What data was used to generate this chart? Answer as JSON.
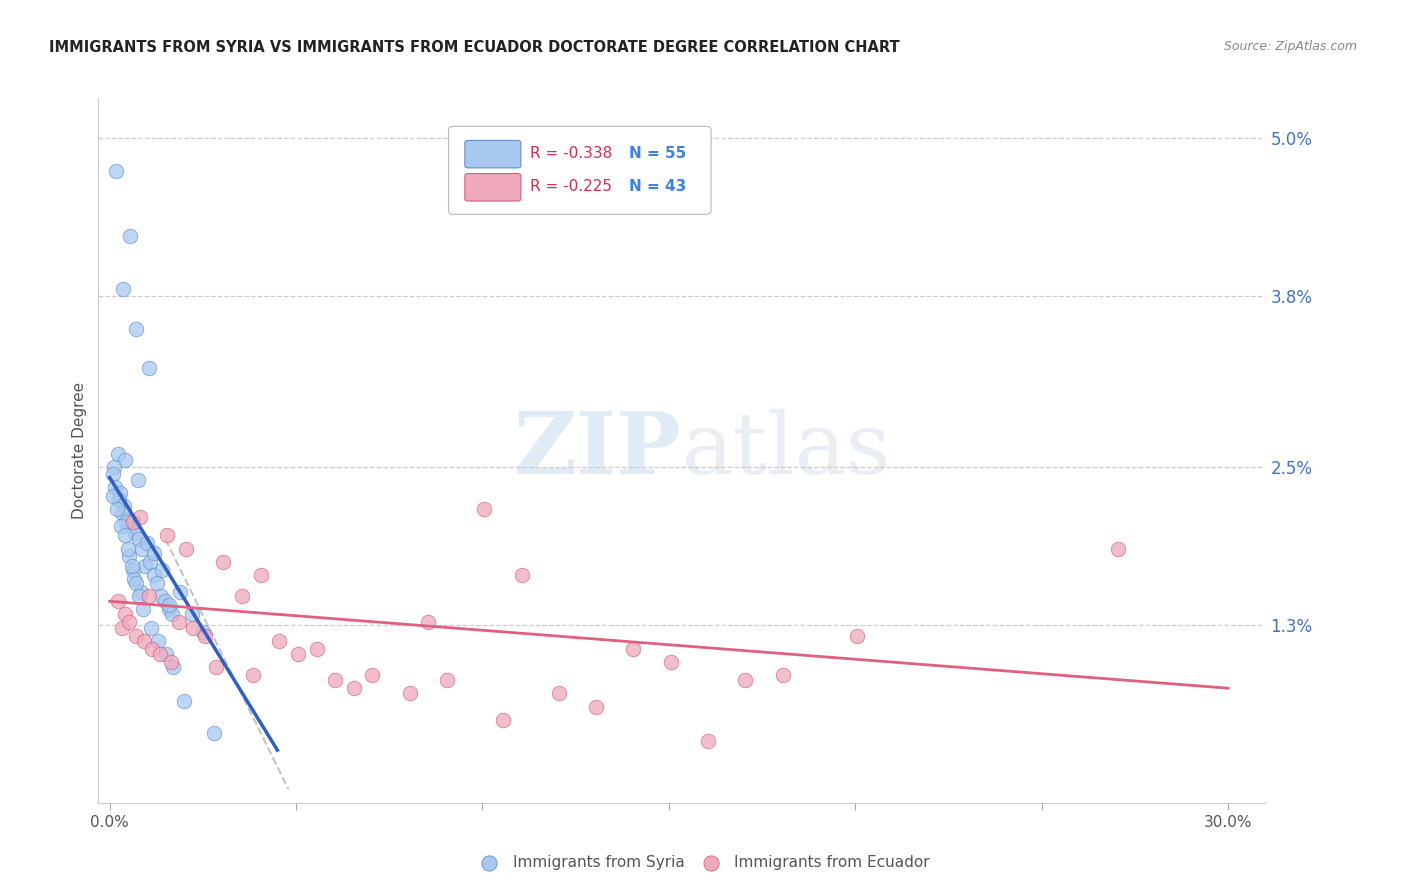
{
  "title": "IMMIGRANTS FROM SYRIA VS IMMIGRANTS FROM ECUADOR DOCTORATE DEGREE CORRELATION CHART",
  "source_text": "Source: ZipAtlas.com",
  "ylabel": "Doctorate Degree",
  "y_ticks_right": [
    1.3,
    2.5,
    3.8,
    5.0
  ],
  "y_tick_labels_right": [
    "1.3%",
    "2.5%",
    "3.8%",
    "5.0%"
  ],
  "y_min": -0.05,
  "y_max": 5.3,
  "x_min": -0.3,
  "x_max": 31.0,
  "legend_r_syria": "R = -0.338",
  "legend_n_syria": "N = 55",
  "legend_r_ecuador": "R = -0.225",
  "legend_n_ecuador": "N = 43",
  "legend_label_syria": "Immigrants from Syria",
  "legend_label_ecuador": "Immigrants from Ecuador",
  "color_syria": "#A8C8F0",
  "color_ecuador": "#F0A8BC",
  "color_syria_edge": "#6090C8",
  "color_ecuador_edge": "#D06080",
  "color_syria_line": "#3060C0",
  "color_ecuador_line": "#E06080",
  "color_r": "#CC3050",
  "color_n": "#4080E0",
  "grid_color": "#CCCCCC",
  "background_color": "#FFFFFF",
  "watermark_zip": "ZIP",
  "watermark_atlas": "atlas",
  "syria_x": [
    0.18,
    0.55,
    0.35,
    0.7,
    1.05,
    0.22,
    0.42,
    0.75,
    0.12,
    0.08,
    0.15,
    0.28,
    0.38,
    0.48,
    0.58,
    0.68,
    0.78,
    0.88,
    0.95,
    1.08,
    1.18,
    1.28,
    1.38,
    1.48,
    1.58,
    1.68,
    0.32,
    0.62,
    0.52,
    0.25,
    0.45,
    0.65,
    0.85,
    1.0,
    1.2,
    1.4,
    1.6,
    1.9,
    2.2,
    2.5,
    0.1,
    0.2,
    0.3,
    0.4,
    0.5,
    0.6,
    0.7,
    0.8,
    0.9,
    1.1,
    1.3,
    1.5,
    1.7,
    2.0,
    2.8
  ],
  "syria_y": [
    4.75,
    4.25,
    3.85,
    3.55,
    3.25,
    2.6,
    2.55,
    2.4,
    2.5,
    2.45,
    2.35,
    2.3,
    2.2,
    2.1,
    2.05,
    2.0,
    1.95,
    1.88,
    1.75,
    1.78,
    1.68,
    1.62,
    1.52,
    1.48,
    1.42,
    1.38,
    2.15,
    1.72,
    1.82,
    2.25,
    2.08,
    1.65,
    1.55,
    1.92,
    1.85,
    1.72,
    1.45,
    1.55,
    1.38,
    1.25,
    2.28,
    2.18,
    2.05,
    1.98,
    1.88,
    1.75,
    1.62,
    1.52,
    1.42,
    1.28,
    1.18,
    1.08,
    0.98,
    0.72,
    0.48
  ],
  "ecuador_x": [
    0.22,
    0.42,
    0.62,
    0.82,
    1.05,
    1.55,
    1.85,
    2.05,
    2.25,
    2.55,
    3.05,
    3.55,
    4.05,
    4.55,
    5.05,
    5.55,
    6.05,
    7.05,
    8.05,
    9.05,
    10.05,
    11.05,
    12.05,
    13.05,
    14.05,
    15.05,
    17.05,
    18.05,
    20.05,
    27.05,
    0.32,
    0.52,
    0.72,
    0.92,
    1.15,
    1.35,
    1.65,
    2.85,
    3.85,
    6.55,
    8.55,
    10.55,
    16.05
  ],
  "ecuador_y": [
    1.48,
    1.38,
    2.08,
    2.12,
    1.52,
    1.98,
    1.32,
    1.88,
    1.28,
    1.22,
    1.78,
    1.52,
    1.68,
    1.18,
    1.08,
    1.12,
    0.88,
    0.92,
    0.78,
    0.88,
    2.18,
    1.68,
    0.78,
    0.68,
    1.12,
    1.02,
    0.88,
    0.92,
    1.22,
    1.88,
    1.28,
    1.32,
    1.22,
    1.18,
    1.12,
    1.08,
    1.02,
    0.98,
    0.92,
    0.82,
    1.32,
    0.58,
    0.42
  ],
  "syria_line_x0": 0.0,
  "syria_line_x1": 4.5,
  "syria_line_y0": 2.42,
  "syria_line_y1": 0.35,
  "ecuador_line_x0": 0.0,
  "ecuador_line_x1": 30.0,
  "ecuador_line_y0": 1.48,
  "ecuador_line_y1": 0.82,
  "dashed_line_x0": 1.5,
  "dashed_line_x1": 4.8,
  "dashed_line_y0": 1.95,
  "dashed_line_y1": 0.05
}
